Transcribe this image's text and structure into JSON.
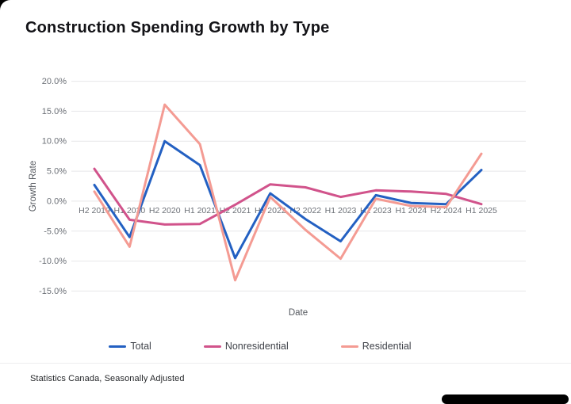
{
  "title": "Construction Spending Growth by Type",
  "footer": {
    "source_note": "Statistics Canada, Seasonally Adjusted"
  },
  "colors": {
    "total": "#2360c2",
    "nonresidential": "#d1538b",
    "residential": "#f49b93",
    "grid": "#e7e7e9",
    "tick_text": "#6b6f76",
    "axis_title_text": "#55595f"
  },
  "chart_data": {
    "type": "line",
    "title": "Construction Spending Growth by Type",
    "xlabel": "Date",
    "ylabel": "Growth Rate",
    "categories": [
      "H2 2019",
      "H1 2020",
      "H2 2020",
      "H1 2021",
      "H2 2021",
      "H1 2022",
      "H2 2022",
      "H1 2023",
      "H2 2023",
      "H1 2024",
      "H2 2024",
      "H1 2025"
    ],
    "series": [
      {
        "name": "Total",
        "color": "#2360c2",
        "values": [
          2.7,
          -6.0,
          10.0,
          6.0,
          -9.5,
          1.3,
          -3.0,
          -6.7,
          1.0,
          -0.3,
          -0.5,
          5.2
        ]
      },
      {
        "name": "Nonresidential",
        "color": "#d1538b",
        "values": [
          5.4,
          -3.1,
          -3.9,
          -3.8,
          -0.6,
          2.8,
          2.3,
          0.7,
          1.8,
          1.6,
          1.2,
          -0.5
        ]
      },
      {
        "name": "Residential",
        "color": "#f49b93",
        "values": [
          1.6,
          -7.6,
          16.1,
          9.5,
          -13.2,
          0.7,
          -4.8,
          -9.6,
          0.4,
          -0.8,
          -1.0,
          7.9
        ]
      }
    ],
    "y_ticks": [
      20,
      15,
      10,
      5,
      0,
      -5,
      -10,
      -15
    ],
    "y_tick_suffix": "%",
    "ylim": [
      -16,
      21
    ],
    "grid": "horizontal",
    "legend_position": "bottom",
    "x_labels_at_zero_line": true
  }
}
